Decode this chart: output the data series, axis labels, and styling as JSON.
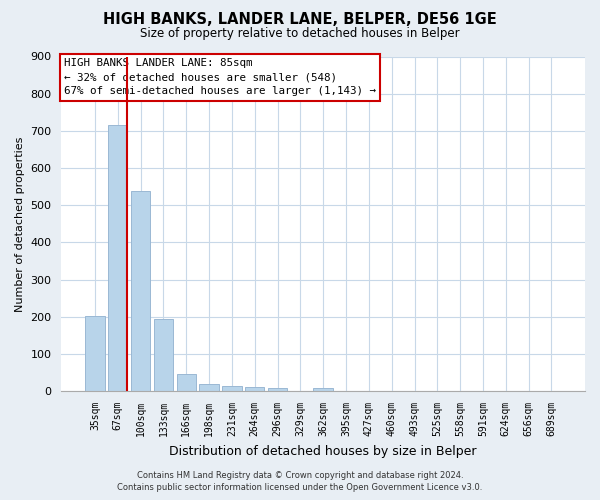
{
  "title": "HIGH BANKS, LANDER LANE, BELPER, DE56 1GE",
  "subtitle": "Size of property relative to detached houses in Belper",
  "xlabel": "Distribution of detached houses by size in Belper",
  "ylabel": "Number of detached properties",
  "categories": [
    "35sqm",
    "67sqm",
    "100sqm",
    "133sqm",
    "166sqm",
    "198sqm",
    "231sqm",
    "264sqm",
    "296sqm",
    "329sqm",
    "362sqm",
    "395sqm",
    "427sqm",
    "460sqm",
    "493sqm",
    "525sqm",
    "558sqm",
    "591sqm",
    "624sqm",
    "656sqm",
    "689sqm"
  ],
  "values": [
    202,
    715,
    537,
    195,
    46,
    20,
    15,
    10,
    8,
    0,
    8,
    0,
    0,
    0,
    0,
    0,
    0,
    0,
    0,
    0,
    0
  ],
  "bar_color": "#b8d4ea",
  "bar_edge_color": "#9ab8d4",
  "marker_line_color": "#cc0000",
  "annotation_line1": "HIGH BANKS LANDER LANE: 85sqm",
  "annotation_line2": "← 32% of detached houses are smaller (548)",
  "annotation_line3": "67% of semi-detached houses are larger (1,143) →",
  "ylim": [
    0,
    900
  ],
  "yticks": [
    0,
    100,
    200,
    300,
    400,
    500,
    600,
    700,
    800,
    900
  ],
  "grid_color": "#c8d8e8",
  "plot_bg_color": "#ffffff",
  "fig_bg_color": "#e8eef4",
  "footer_line1": "Contains HM Land Registry data © Crown copyright and database right 2024.",
  "footer_line2": "Contains public sector information licensed under the Open Government Licence v3.0."
}
